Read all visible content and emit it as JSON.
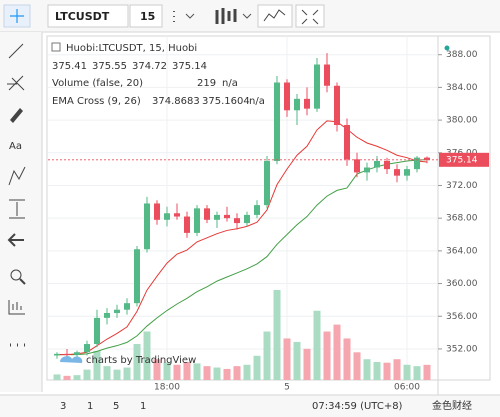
{
  "toolbar": {
    "symbol": "LTCUSDT",
    "interval": "15"
  },
  "side_toolbar": {
    "text_tool": "Aa"
  },
  "legend": {
    "title": "Huobi:LTCUSDT, 15, Huobi",
    "volume_label": "Volume (false, 20)",
    "volume_na": "n/a",
    "ema_label": "EMA Cross (9, 26)",
    "ema_na": "n/a"
  },
  "watermark": "charts by TradingView",
  "bottom_bar": {
    "ranges": [
      "3",
      "1",
      "5",
      "1"
    ],
    "clock": "07:34:59 (UTC+8)"
  },
  "corner_watermark": "金色财经",
  "chart_data": {
    "type": "candlestick",
    "categories": [
      null,
      null,
      null,
      null,
      null,
      null,
      null,
      null,
      null,
      null,
      null,
      "18:00",
      null,
      null,
      null,
      null,
      null,
      null,
      null,
      null,
      null,
      null,
      null,
      "5",
      null,
      null,
      null,
      null,
      null,
      null,
      null,
      null,
      null,
      null,
      null,
      "06:00",
      null,
      null
    ],
    "open": [
      351.2,
      351.4,
      351.3,
      351.6,
      352.6,
      355.8,
      356.4,
      356.8,
      357.6,
      364.2,
      369.8,
      367.8,
      368.6,
      368.2,
      366.2,
      369.2,
      367.8,
      368.4,
      368.0,
      367.4,
      368.4,
      369.6,
      375.0,
      384.6,
      381.2,
      382.6,
      381.4,
      386.8,
      384.2,
      379.4,
      375.2,
      373.6,
      374.2,
      375.0,
      374.0,
      373.2,
      374.0,
      375.41
    ],
    "high": [
      351.6,
      352.0,
      351.8,
      353.0,
      356.8,
      357.0,
      357.4,
      358.2,
      364.6,
      370.6,
      370.2,
      369.4,
      369.8,
      368.8,
      369.6,
      369.6,
      368.8,
      369.4,
      368.6,
      368.8,
      370.2,
      375.6,
      385.4,
      385.0,
      383.2,
      384.0,
      387.6,
      388.2,
      384.6,
      380.2,
      376.0,
      374.8,
      375.6,
      375.4,
      374.6,
      374.4,
      375.6,
      375.55
    ],
    "low": [
      350.8,
      351.0,
      350.6,
      351.2,
      352.2,
      355.0,
      355.8,
      356.2,
      357.2,
      363.8,
      367.2,
      367.0,
      367.8,
      365.6,
      365.8,
      367.4,
      366.8,
      367.6,
      366.6,
      367.0,
      368.0,
      369.2,
      374.6,
      380.4,
      379.4,
      380.6,
      381.0,
      383.4,
      378.6,
      374.4,
      373.0,
      372.6,
      373.6,
      373.4,
      372.4,
      372.6,
      373.6,
      374.72
    ],
    "close": [
      351.4,
      351.3,
      351.6,
      352.6,
      355.8,
      356.4,
      356.8,
      357.6,
      364.2,
      369.8,
      367.8,
      368.6,
      368.2,
      366.2,
      369.2,
      367.8,
      368.4,
      368.0,
      367.4,
      368.4,
      369.6,
      375.0,
      384.6,
      381.2,
      382.6,
      381.4,
      386.8,
      384.2,
      379.4,
      375.2,
      373.6,
      374.2,
      375.0,
      374.0,
      373.2,
      374.0,
      375.41,
      375.14
    ],
    "volume": [
      80,
      60,
      70,
      150,
      420,
      200,
      150,
      180,
      520,
      700,
      300,
      250,
      220,
      260,
      240,
      200,
      180,
      160,
      200,
      220,
      350,
      700,
      1300,
      600,
      550,
      450,
      1000,
      700,
      800,
      600,
      400,
      300,
      260,
      250,
      300,
      220,
      200,
      219
    ],
    "up_color": "#53b987",
    "down_color": "#eb4d5c",
    "volume_up_color": "#a9dcc3",
    "volume_down_color": "#f5a6ae",
    "ema_fast": {
      "color": "#e53935",
      "values": [
        351.3,
        351.3,
        351.4,
        351.6,
        352.4,
        353.2,
        353.9,
        354.7,
        356.6,
        359.2,
        360.9,
        362.5,
        363.6,
        364.1,
        365.1,
        365.6,
        366.1,
        366.5,
        366.7,
        367.0,
        367.5,
        369.0,
        372.1,
        374.0,
        375.7,
        376.8,
        378.8,
        379.9,
        379.8,
        378.9,
        377.9,
        377.2,
        376.8,
        376.3,
        375.7,
        375.4,
        375.0,
        374.8683
      ]
    },
    "ema_slow": {
      "color": "#43a047",
      "values": [
        351.3,
        351.3,
        351.3,
        351.4,
        351.7,
        352.1,
        352.4,
        352.8,
        353.6,
        354.8,
        355.8,
        356.7,
        357.5,
        358.2,
        359.0,
        359.6,
        360.3,
        360.8,
        361.3,
        361.8,
        362.4,
        363.3,
        364.8,
        366.0,
        367.2,
        368.2,
        369.6,
        370.7,
        371.4,
        371.7,
        373.4,
        373.9,
        374.3,
        374.6,
        374.8,
        375.0,
        375.1,
        375.1604
      ]
    },
    "ylim": [
      348.2,
      389.8
    ],
    "yticks": [
      {
        "value": 352,
        "label": "352.00"
      },
      {
        "value": 356,
        "label": "356.00"
      },
      {
        "value": 360,
        "label": "360.00"
      },
      {
        "value": 364,
        "label": "364.00"
      },
      {
        "value": 368,
        "label": "368.00"
      },
      {
        "value": 372,
        "label": "372.00"
      },
      {
        "value": 376,
        "label": "376.00"
      },
      {
        "value": 380,
        "label": "380.00"
      },
      {
        "value": 384,
        "label": "384.00"
      },
      {
        "value": 388,
        "label": "388.00"
      }
    ],
    "grid": true
  }
}
